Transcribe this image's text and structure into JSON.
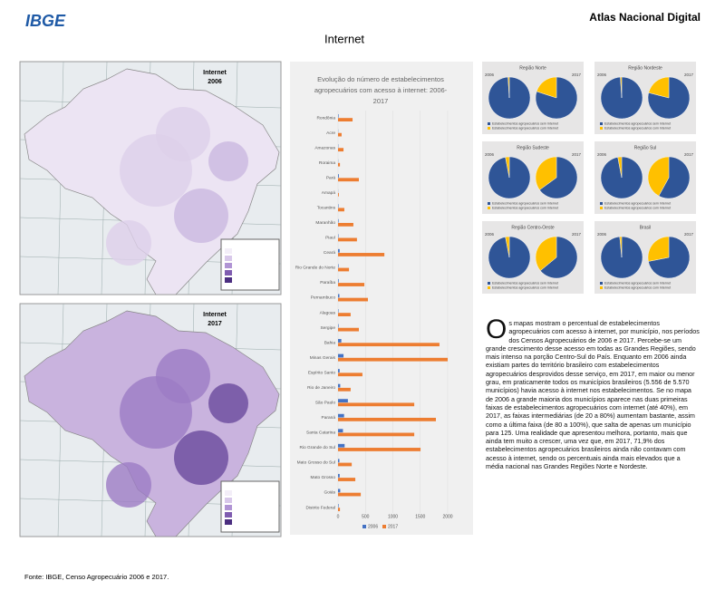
{
  "header": {
    "logo": "IBGE",
    "atlas": "Atlas Nacional Digital",
    "title": "Internet"
  },
  "maps": [
    {
      "title": "Internet",
      "year": "2006"
    },
    {
      "title": "Internet",
      "year": "2017"
    }
  ],
  "chart_data": [
    {
      "type": "bar",
      "title": "Evolução do número de estabelecimentos agropecuários com acesso à internet: 2006-2017",
      "categories": [
        "Rondônia",
        "Acre",
        "Amazonas",
        "Roraima",
        "Pará",
        "Amapá",
        "Tocantins",
        "Maranhão",
        "Piauí",
        "Ceará",
        "Rio Grande do Norte",
        "Paraíba",
        "Pernambuco",
        "Alagoas",
        "Sergipe",
        "Bahia",
        "Minas Gerais",
        "Espírito Santo",
        "Rio de Janeiro",
        "São Paulo",
        "Paraná",
        "Santa Catarina",
        "Rio Grande do Sul",
        "Mato Grosso do Sul",
        "Mato Grosso",
        "Goiás",
        "Distrito Federal"
      ],
      "series": [
        {
          "name": "2006",
          "color": "#4472c4",
          "values": [
            10,
            3,
            5,
            3,
            15,
            2,
            8,
            10,
            8,
            30,
            10,
            12,
            25,
            8,
            10,
            60,
            100,
            30,
            40,
            180,
            110,
            90,
            120,
            25,
            30,
            40,
            10
          ]
        },
        {
          "name": "2017",
          "color": "#ed7d31",
          "values": [
            265,
            65,
            100,
            35,
            380,
            15,
            115,
            280,
            345,
            845,
            200,
            480,
            545,
            230,
            380,
            1850,
            2000,
            445,
            230,
            1390,
            1785,
            1390,
            1505,
            250,
            315,
            415,
            35
          ]
        }
      ],
      "xlim": [
        0,
        2000
      ],
      "xticks": [
        0,
        500,
        1000,
        1500,
        2000
      ]
    },
    {
      "type": "pie",
      "title": "Região Norte",
      "pies": [
        {
          "label": "2006",
          "values": [
            99,
            1
          ]
        },
        {
          "label": "2017",
          "values": [
            80,
            20
          ]
        }
      ],
      "labels": [
        "Estabelecimentos agropecuários sem Internet",
        "Estabelecimentos agropecuários com Internet"
      ],
      "colors": [
        "#2f5597",
        "#ffc000"
      ]
    },
    {
      "type": "pie",
      "title": "Região Nordeste",
      "pies": [
        {
          "label": "2006",
          "values": [
            99,
            1
          ]
        },
        {
          "label": "2017",
          "values": [
            79,
            21
          ]
        }
      ],
      "labels": [
        "Estabelecimentos agropecuários sem Internet",
        "Estabelecimentos agropecuários com Internet"
      ],
      "colors": [
        "#2f5597",
        "#ffc000"
      ]
    },
    {
      "type": "pie",
      "title": "Região Sudeste",
      "pies": [
        {
          "label": "2006",
          "values": [
            97,
            3
          ]
        },
        {
          "label": "2017",
          "values": [
            65,
            35
          ]
        }
      ],
      "labels": [
        "Estabelecimentos agropecuários sem Internet",
        "Estabelecimentos agropecuários com Internet"
      ],
      "colors": [
        "#2f5597",
        "#ffc000"
      ]
    },
    {
      "type": "pie",
      "title": "Região Sul",
      "pies": [
        {
          "label": "2006",
          "values": [
            97,
            3
          ]
        },
        {
          "label": "2017",
          "values": [
            58,
            42
          ]
        }
      ],
      "labels": [
        "Estabelecimentos agropecuários sem Internet",
        "Estabelecimentos agropecuários com Internet"
      ],
      "colors": [
        "#2f5597",
        "#ffc000"
      ]
    },
    {
      "type": "pie",
      "title": "Região Centro-Oeste",
      "pies": [
        {
          "label": "2006",
          "values": [
            97,
            3
          ]
        },
        {
          "label": "2017",
          "values": [
            64,
            36
          ]
        }
      ],
      "labels": [
        "Estabelecimentos agropecuários sem Internet",
        "Estabelecimentos agropecuários com Internet"
      ],
      "colors": [
        "#2f5597",
        "#ffc000"
      ]
    },
    {
      "type": "pie",
      "title": "Brasil",
      "pies": [
        {
          "label": "2006",
          "values": [
            98.5,
            1.5
          ]
        },
        {
          "label": "2017",
          "values": [
            71.9,
            28.1
          ]
        }
      ],
      "labels": [
        "Estabelecimentos agropecuários sem Internet",
        "Estabelecimentos agropecuários com Internet"
      ],
      "colors": [
        "#2f5597",
        "#ffc000"
      ]
    }
  ],
  "text": {
    "drop_cap": "O",
    "body": "s mapas mostram o percentual de estabelecimentos agropecuários com acesso à internet, por município, nos períodos dos Censos Agropecuários de 2006 e 2017. Percebe-se um grande crescimento desse acesso em todas as Grandes Regiões, sendo mais intenso na porção Centro-Sul do País. Enquanto em 2006 ainda existiam partes do território brasileiro com estabelecimentos agropecuários desprovidos desse serviço, em 2017, em maior ou menor grau, em praticamente todos os municípios brasileiros (5.556 de 5.570 municípios) havia acesso à internet nos estabelecimentos. Se no mapa de 2006 a grande maioria dos municípios aparece nas duas primeiras faixas de estabelecimentos agropecuários com internet (até 40%), em 2017, as faixas intermediárias (de 20 a 80%) aumentam bastante, assim como a última faixa (de 80 a 100%), que salta de apenas um município para 125. Uma realidade que apresentou melhora, portanto, mais que ainda tem muito a crescer, uma vez que, em 2017, 71,9% dos estabelecimentos agropecuários brasileiros ainda não contavam com acesso à internet, sendo os percentuais ainda mais elevados que a média nacional nas Grandes Regiões Norte e Nordeste."
  },
  "footer": {
    "source": "Fonte: IBGE, Censo Agropecuário 2006 e 2017."
  }
}
